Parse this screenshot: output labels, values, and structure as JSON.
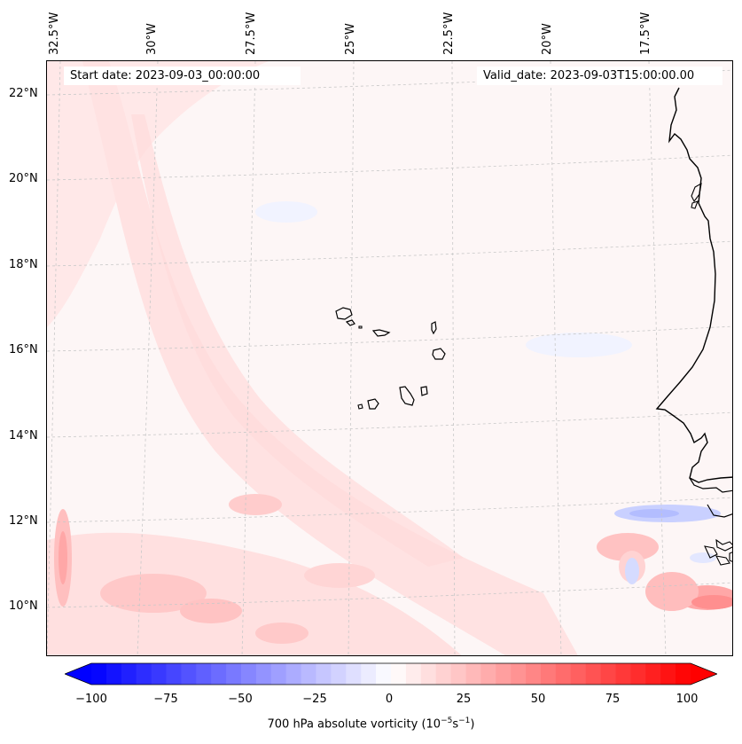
{
  "map": {
    "start_date": "Start date: 2023-09-03_00:00:00",
    "valid_date": "Valid_date: 2023-09-03T15:00:00.00",
    "lon_labels": [
      "32.5°W",
      "30°W",
      "27.5°W",
      "25°W",
      "22.5°W",
      "20°W",
      "17.5°W"
    ],
    "lat_labels": [
      "22°N",
      "20°N",
      "18°N",
      "16°N",
      "14°N",
      "12°N",
      "10°N"
    ],
    "islands": [
      "Santo Antão",
      "São Vicente",
      "Santa Luzia",
      "São Nicolau",
      "Sal",
      "Boa Vista",
      "Maio",
      "Santiago",
      "Fogo",
      "Brava"
    ]
  },
  "colorbar": {
    "label": "700 hPa absolute vorticity (10⁻⁵s⁻¹)",
    "label_prefix": "700 hPa absolute vorticity (10",
    "label_exp1": "−5",
    "label_mid": "s",
    "label_exp2": "−1",
    "label_suffix": ")",
    "ticks": [
      "−100",
      "−75",
      "−50",
      "−25",
      "0",
      "25",
      "50",
      "75",
      "100"
    ],
    "range": [
      -100,
      100
    ],
    "min_color": "#0000ff",
    "mid_color": "#ffffff",
    "max_color": "#ff0000"
  },
  "colors": {
    "background": "#ffffff",
    "field_base": "#fdf7f7",
    "positive_light": "#ffe3e3",
    "positive_mid": "#ffb7b7",
    "negative_light": "#eef1ff",
    "negative_mid": "#c9d0ff",
    "coast": "#000000",
    "grid": "#c8c8c8"
  }
}
